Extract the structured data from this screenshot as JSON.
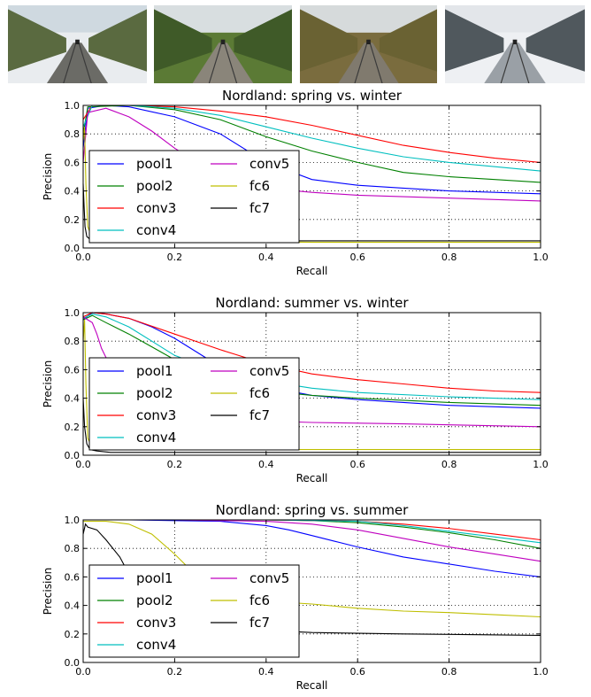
{
  "photos": [
    {
      "season": "spring",
      "palette": {
        "sky": "#cfd9e0",
        "trees": "#5a6a40",
        "ground": "#e9ecef",
        "track": "#6b6b66"
      }
    },
    {
      "season": "summer",
      "palette": {
        "sky": "#d8dee0",
        "trees": "#3f5a28",
        "ground": "#5b7a35",
        "track": "#8a857a"
      }
    },
    {
      "season": "fall",
      "palette": {
        "sky": "#d6dadb",
        "trees": "#6a6233",
        "ground": "#7a6c3e",
        "track": "#807a6e"
      }
    },
    {
      "season": "winter",
      "palette": {
        "sky": "#e3e6ea",
        "trees": "#50585d",
        "ground": "#eef0f3",
        "track": "#9aa0a6"
      }
    }
  ],
  "legend": {
    "labels": [
      "pool1",
      "pool2",
      "conv3",
      "conv4",
      "conv5",
      "fc6",
      "fc7"
    ]
  },
  "series_colors": {
    "pool1": "#0000ff",
    "pool2": "#008000",
    "conv3": "#ff0000",
    "conv4": "#00bfbf",
    "conv5": "#bf00bf",
    "fc6": "#bfbf00",
    "fc7": "#000000"
  },
  "chart_data": [
    {
      "type": "line",
      "title": "Nordland: spring vs. winter",
      "xlabel": "Recall",
      "ylabel": "Precision",
      "xlim": [
        0,
        1
      ],
      "ylim": [
        0,
        1
      ],
      "xticks": [
        "0.0",
        "0.2",
        "0.4",
        "0.6",
        "0.8",
        "1.0"
      ],
      "yticks": [
        "0.0",
        "0.2",
        "0.4",
        "0.6",
        "0.8",
        "1.0"
      ],
      "grid": true,
      "legend_position": "lower-left",
      "series": [
        {
          "name": "pool1",
          "x": [
            0,
            0.01,
            0.05,
            0.1,
            0.2,
            0.3,
            0.4,
            0.5,
            0.6,
            0.7,
            0.8,
            0.9,
            1.0
          ],
          "y": [
            0.7,
            0.98,
            1.0,
            0.99,
            0.92,
            0.8,
            0.6,
            0.48,
            0.44,
            0.42,
            0.4,
            0.39,
            0.38
          ]
        },
        {
          "name": "pool2",
          "x": [
            0,
            0.01,
            0.1,
            0.2,
            0.3,
            0.4,
            0.5,
            0.6,
            0.7,
            0.8,
            0.9,
            1.0
          ],
          "y": [
            0.8,
            0.99,
            1.0,
            0.97,
            0.9,
            0.78,
            0.68,
            0.6,
            0.53,
            0.5,
            0.48,
            0.46
          ]
        },
        {
          "name": "conv3",
          "x": [
            0,
            0.02,
            0.1,
            0.2,
            0.3,
            0.4,
            0.5,
            0.6,
            0.7,
            0.8,
            0.9,
            1.0
          ],
          "y": [
            0.9,
            1.0,
            1.0,
            0.99,
            0.96,
            0.92,
            0.86,
            0.79,
            0.72,
            0.67,
            0.63,
            0.6
          ]
        },
        {
          "name": "conv4",
          "x": [
            0,
            0.02,
            0.1,
            0.2,
            0.3,
            0.4,
            0.5,
            0.6,
            0.7,
            0.8,
            0.9,
            1.0
          ],
          "y": [
            0.85,
            1.0,
            1.0,
            0.98,
            0.93,
            0.85,
            0.77,
            0.7,
            0.64,
            0.6,
            0.57,
            0.54
          ]
        },
        {
          "name": "conv5",
          "x": [
            0,
            0.01,
            0.05,
            0.1,
            0.15,
            0.2,
            0.3,
            0.4,
            0.5,
            0.6,
            0.8,
            1.0
          ],
          "y": [
            0.6,
            0.95,
            0.98,
            0.92,
            0.82,
            0.7,
            0.5,
            0.42,
            0.39,
            0.37,
            0.35,
            0.33
          ]
        },
        {
          "name": "fc6",
          "x": [
            0,
            0.003,
            0.006,
            0.01,
            0.02,
            0.05,
            0.2,
            0.5,
            1.0
          ],
          "y": [
            0.75,
            0.85,
            0.45,
            0.15,
            0.06,
            0.05,
            0.05,
            0.04,
            0.04
          ]
        },
        {
          "name": "fc7",
          "x": [
            0,
            0.002,
            0.004,
            0.008,
            0.015,
            0.03,
            0.2,
            0.5,
            1.0
          ],
          "y": [
            0.45,
            0.3,
            0.15,
            0.08,
            0.06,
            0.05,
            0.05,
            0.05,
            0.05
          ]
        }
      ]
    },
    {
      "type": "line",
      "title": "Nordland: summer vs. winter",
      "xlabel": "Recall",
      "ylabel": "Precision",
      "xlim": [
        0,
        1
      ],
      "ylim": [
        0,
        1
      ],
      "xticks": [
        "0.0",
        "0.2",
        "0.4",
        "0.6",
        "0.8",
        "1.0"
      ],
      "yticks": [
        "0.0",
        "0.2",
        "0.4",
        "0.6",
        "0.8",
        "1.0"
      ],
      "grid": true,
      "legend_position": "lower-left",
      "series": [
        {
          "name": "pool1",
          "x": [
            0,
            0.02,
            0.05,
            0.1,
            0.15,
            0.2,
            0.25,
            0.3,
            0.4,
            0.5,
            0.6,
            0.8,
            1.0
          ],
          "y": [
            0.95,
            1.0,
            0.99,
            0.96,
            0.9,
            0.82,
            0.72,
            0.62,
            0.48,
            0.42,
            0.39,
            0.35,
            0.33
          ]
        },
        {
          "name": "pool2",
          "x": [
            0,
            0.02,
            0.05,
            0.1,
            0.15,
            0.2,
            0.25,
            0.3,
            0.4,
            0.5,
            0.6,
            0.8,
            1.0
          ],
          "y": [
            0.95,
            0.98,
            0.93,
            0.85,
            0.76,
            0.67,
            0.58,
            0.52,
            0.45,
            0.42,
            0.4,
            0.37,
            0.35
          ]
        },
        {
          "name": "conv3",
          "x": [
            0,
            0.02,
            0.05,
            0.1,
            0.2,
            0.3,
            0.4,
            0.5,
            0.6,
            0.7,
            0.8,
            0.9,
            1.0
          ],
          "y": [
            0.97,
            1.0,
            0.99,
            0.96,
            0.85,
            0.74,
            0.64,
            0.57,
            0.53,
            0.5,
            0.47,
            0.45,
            0.44
          ]
        },
        {
          "name": "conv4",
          "x": [
            0,
            0.02,
            0.05,
            0.1,
            0.15,
            0.2,
            0.3,
            0.4,
            0.5,
            0.6,
            0.8,
            1.0
          ],
          "y": [
            0.96,
            0.99,
            0.97,
            0.9,
            0.8,
            0.7,
            0.58,
            0.52,
            0.47,
            0.44,
            0.41,
            0.39
          ]
        },
        {
          "name": "conv5",
          "x": [
            0,
            0.01,
            0.02,
            0.03,
            0.04,
            0.06,
            0.1,
            0.2,
            0.3,
            0.5,
            0.7,
            1.0
          ],
          "y": [
            0.97,
            0.95,
            0.93,
            0.85,
            0.75,
            0.62,
            0.45,
            0.3,
            0.25,
            0.23,
            0.22,
            0.2
          ]
        },
        {
          "name": "fc6",
          "x": [
            0,
            0.003,
            0.006,
            0.01,
            0.02,
            0.05,
            0.2,
            0.5,
            1.0
          ],
          "y": [
            0.8,
            0.95,
            0.5,
            0.12,
            0.05,
            0.04,
            0.04,
            0.04,
            0.04
          ]
        },
        {
          "name": "fc7",
          "x": [
            0,
            0.003,
            0.008,
            0.015,
            0.03,
            0.06,
            0.2,
            0.5,
            1.0
          ],
          "y": [
            0.4,
            0.2,
            0.08,
            0.04,
            0.03,
            0.02,
            0.02,
            0.02,
            0.02
          ]
        }
      ]
    },
    {
      "type": "line",
      "title": "Nordland: spring vs. summer",
      "xlabel": "Recall",
      "ylabel": "Precision",
      "xlim": [
        0,
        1
      ],
      "ylim": [
        0,
        1
      ],
      "xticks": [
        "0.0",
        "0.2",
        "0.4",
        "0.6",
        "0.8",
        "1.0"
      ],
      "yticks": [
        "0.0",
        "0.2",
        "0.4",
        "0.6",
        "0.8",
        "1.0"
      ],
      "grid": true,
      "legend_position": "lower-left",
      "series": [
        {
          "name": "pool1",
          "x": [
            0,
            0.1,
            0.2,
            0.3,
            0.4,
            0.45,
            0.5,
            0.55,
            0.6,
            0.7,
            0.8,
            0.9,
            1.0
          ],
          "y": [
            1.0,
            1.0,
            0.995,
            0.99,
            0.96,
            0.93,
            0.89,
            0.85,
            0.81,
            0.74,
            0.69,
            0.64,
            0.6
          ]
        },
        {
          "name": "pool2",
          "x": [
            0,
            0.2,
            0.4,
            0.5,
            0.6,
            0.7,
            0.8,
            0.9,
            1.0
          ],
          "y": [
            1.0,
            1.0,
            1.0,
            0.995,
            0.98,
            0.95,
            0.91,
            0.86,
            0.8
          ]
        },
        {
          "name": "conv3",
          "x": [
            0,
            0.2,
            0.4,
            0.6,
            0.7,
            0.8,
            0.9,
            1.0
          ],
          "y": [
            1.0,
            1.0,
            1.0,
            0.99,
            0.97,
            0.94,
            0.9,
            0.86
          ]
        },
        {
          "name": "conv4",
          "x": [
            0,
            0.2,
            0.4,
            0.6,
            0.7,
            0.8,
            0.9,
            1.0
          ],
          "y": [
            1.0,
            1.0,
            1.0,
            0.99,
            0.96,
            0.92,
            0.88,
            0.84
          ]
        },
        {
          "name": "conv5",
          "x": [
            0,
            0.2,
            0.4,
            0.5,
            0.6,
            0.7,
            0.8,
            0.9,
            1.0
          ],
          "y": [
            1.0,
            1.0,
            0.99,
            0.97,
            0.93,
            0.87,
            0.81,
            0.76,
            0.71
          ]
        },
        {
          "name": "fc6",
          "x": [
            0,
            0.05,
            0.1,
            0.15,
            0.2,
            0.25,
            0.3,
            0.35,
            0.4,
            0.5,
            0.6,
            0.7,
            0.8,
            0.9,
            1.0
          ],
          "y": [
            0.99,
            0.99,
            0.97,
            0.9,
            0.76,
            0.6,
            0.5,
            0.45,
            0.43,
            0.41,
            0.38,
            0.36,
            0.35,
            0.335,
            0.32
          ]
        },
        {
          "name": "fc7",
          "x": [
            0,
            0.005,
            0.01,
            0.03,
            0.05,
            0.08,
            0.1,
            0.15,
            0.2,
            0.3,
            0.5,
            0.7,
            1.0
          ],
          "y": [
            0.9,
            0.97,
            0.95,
            0.93,
            0.86,
            0.74,
            0.62,
            0.45,
            0.32,
            0.24,
            0.21,
            0.2,
            0.19
          ]
        }
      ]
    }
  ]
}
